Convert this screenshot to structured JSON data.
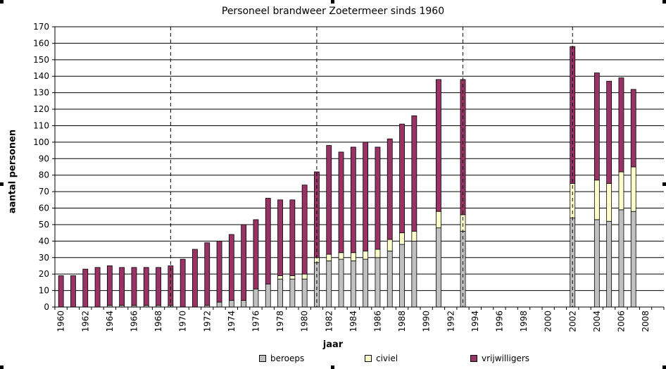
{
  "chart_data": {
    "type": "bar",
    "stacked": true,
    "title": "Personeel brandweer Zoetermeer sinds 1960",
    "xlabel": "jaar",
    "ylabel": "aantal personen",
    "ylim": [
      0,
      170
    ],
    "yticks": [
      0,
      10,
      20,
      30,
      40,
      50,
      60,
      70,
      80,
      90,
      100,
      110,
      120,
      130,
      140,
      150,
      160,
      170
    ],
    "grid": true,
    "legend_position": "bottom",
    "categories": [
      "1960",
      "1961",
      "1962",
      "1963",
      "1964",
      "1965",
      "1966",
      "1967",
      "1968",
      "1969",
      "1970",
      "1971",
      "1972",
      "1973",
      "1974",
      "1975",
      "1976",
      "1977",
      "1978",
      "1979",
      "1980",
      "1981",
      "1982",
      "1983",
      "1984",
      "1985",
      "1986",
      "1987",
      "1988",
      "1989",
      "1990",
      "1991",
      "1992",
      "1993",
      "1994",
      "1995",
      "1996",
      "1997",
      "1998",
      "1999",
      "2000",
      "2001",
      "2002",
      "2003",
      "2004",
      "2005",
      "2006",
      "2007",
      "2008",
      "2009"
    ],
    "tick_labels": [
      "1960",
      "1962",
      "1964",
      "1966",
      "1968",
      "1970",
      "1972",
      "1974",
      "1976",
      "1978",
      "1980",
      "1982",
      "1984",
      "1986",
      "1988",
      "1990",
      "1992",
      "1994",
      "1996",
      "1998",
      "2000",
      "2002",
      "2004",
      "2006",
      "2008"
    ],
    "dashed_lines_at": [
      "1969",
      "1981",
      "1993",
      "2002"
    ],
    "series": [
      {
        "name": "beroeps",
        "color": "#c0c0c0",
        "values": [
          0,
          0,
          0,
          0,
          1,
          1,
          1,
          1,
          1,
          1,
          0,
          0,
          1,
          3,
          4,
          4,
          11,
          14,
          17,
          17,
          17,
          27,
          28,
          29,
          28,
          29,
          30,
          34,
          38,
          40,
          0,
          48,
          0,
          46,
          0,
          0,
          0,
          0,
          0,
          0,
          0,
          0,
          54,
          0,
          53,
          52,
          59,
          58,
          0,
          0
        ]
      },
      {
        "name": "civiel",
        "color": "#ffffcc",
        "values": [
          0,
          0,
          0,
          0,
          0,
          0,
          0,
          0,
          0,
          0,
          0,
          0,
          0,
          0,
          0,
          0,
          0,
          0,
          2,
          2,
          3,
          3,
          4,
          4,
          5,
          5,
          5,
          7,
          7,
          6,
          0,
          10,
          0,
          10,
          0,
          0,
          0,
          0,
          0,
          0,
          0,
          0,
          21,
          0,
          24,
          23,
          23,
          27,
          0,
          0
        ]
      },
      {
        "name": "vrijwilligers",
        "color": "#993366",
        "values": [
          19,
          19,
          23,
          24,
          24,
          23,
          23,
          23,
          23,
          24,
          29,
          35,
          38,
          37,
          40,
          46,
          42,
          52,
          46,
          46,
          54,
          52,
          66,
          61,
          64,
          66,
          62,
          61,
          66,
          70,
          0,
          80,
          0,
          82,
          0,
          0,
          0,
          0,
          0,
          0,
          0,
          0,
          83,
          0,
          65,
          62,
          57,
          47,
          0,
          0
        ]
      }
    ]
  }
}
